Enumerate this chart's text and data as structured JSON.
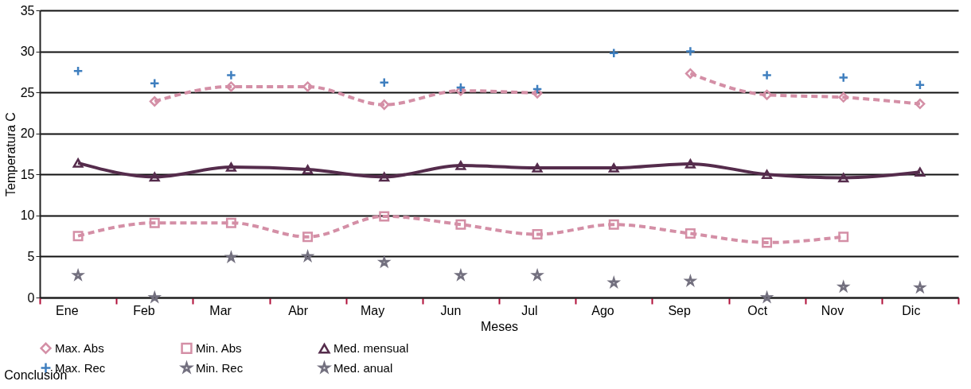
{
  "chart_data": {
    "type": "line",
    "xlabel": "Meses",
    "ylabel": "Temperatura C",
    "categories": [
      "Ene",
      "Feb",
      "Mar",
      "Abr",
      "May",
      "Jun",
      "Jul",
      "Ago",
      "Sep",
      "Oct",
      "Nov",
      "Dic"
    ],
    "ylim": [
      0,
      35
    ],
    "yticks": [
      0,
      5,
      10,
      15,
      20,
      25,
      30,
      35
    ],
    "grid": "y",
    "legend": "bottom",
    "annotations": [
      "Conclusión"
    ],
    "series": [
      {
        "name": "Max. Abs",
        "color": "#d48fa6",
        "line_style": "dashed",
        "marker": "diamond",
        "values": [
          null,
          23.9,
          25.7,
          25.7,
          23.5,
          25.2,
          24.9,
          null,
          27.3,
          24.7,
          24.4,
          23.6
        ]
      },
      {
        "name": "Min. Abs",
        "color": "#d48fa6",
        "line_style": "dashed",
        "marker": "square",
        "values": [
          7.5,
          9.1,
          9.1,
          7.4,
          9.9,
          8.9,
          7.7,
          8.9,
          7.8,
          6.7,
          7.4,
          null
        ]
      },
      {
        "name": "Med. mensual",
        "color": "#552c4c",
        "line_style": "solid",
        "marker": "triangle",
        "values": [
          16.4,
          14.7,
          15.9,
          15.6,
          14.7,
          16.1,
          15.8,
          15.8,
          16.3,
          15.0,
          14.6,
          15.3
        ]
      },
      {
        "name": "Max. Rec",
        "type": "scatter",
        "color": "#3f7fbf",
        "marker": "cross",
        "values": [
          27.6,
          26.1,
          27.1,
          null,
          26.2,
          25.6,
          25.4,
          29.8,
          30.0,
          27.1,
          26.8,
          25.9
        ]
      },
      {
        "name": "Min. Rec",
        "type": "scatter",
        "color": "#73707f",
        "marker": "star",
        "values": [
          2.7,
          0,
          4.9,
          5.0,
          4.3,
          2.7,
          2.7,
          1.8,
          2.0,
          0,
          1.3,
          1.2
        ]
      },
      {
        "name": "Med. anual",
        "color": "#73707f",
        "line_style": "solid",
        "marker": "star",
        "values": [
          null,
          null,
          null,
          null,
          null,
          null,
          null,
          null,
          null,
          null,
          null,
          null
        ]
      }
    ]
  }
}
